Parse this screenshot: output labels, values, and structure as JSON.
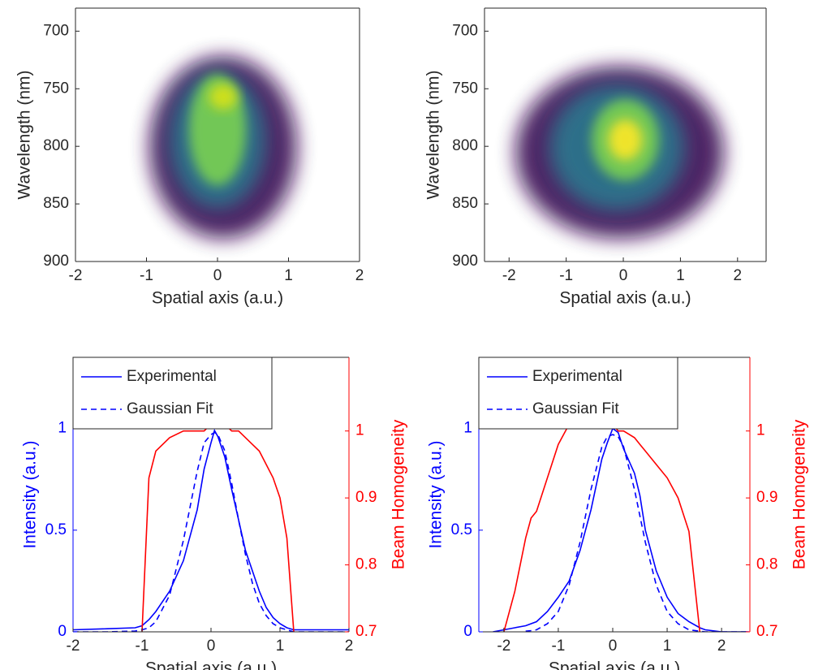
{
  "chart_data": [
    {
      "type": "heatmap",
      "xlabel": "Spatial axis (a.u.)",
      "ylabel": "Wavelength (nm)",
      "xlim": [
        -2,
        2
      ],
      "xticks": [
        -2,
        -1,
        0,
        1,
        2
      ],
      "ylim": [
        680,
        900
      ],
      "yticks": [
        700,
        750,
        800,
        850,
        900
      ],
      "y_reversed": true
    },
    {
      "type": "heatmap",
      "xlabel": "Spatial axis (a.u.)",
      "ylabel": "Wavelength (nm)",
      "xlim": [
        -2.43,
        2.5
      ],
      "xticks": [
        -2,
        -1,
        0,
        1,
        2
      ],
      "ylim": [
        680,
        900
      ],
      "yticks": [
        700,
        750,
        800,
        850,
        900
      ],
      "y_reversed": true
    },
    {
      "type": "line",
      "xlabel": "Spatial axis (a.u.)",
      "ylabel": "Intensity (a.u.)",
      "y2label": "Beam Homogeneity",
      "y_color": "#0000ff",
      "y2_color": "#ff0000",
      "legend": "upper left",
      "xlim": [
        -2,
        2
      ],
      "xticks": [
        -2,
        -1,
        0,
        1,
        2
      ],
      "ylim": [
        0,
        1.35
      ],
      "yticks": [
        0,
        0.5,
        1
      ],
      "y2lim": [
        0.7,
        1.11
      ],
      "y2ticks": [
        0.7,
        0.8,
        0.9,
        1
      ],
      "x": [
        -2,
        -1.5,
        -1.1,
        -1,
        -0.9,
        -0.8,
        -0.6,
        -0.4,
        -0.2,
        -0.1,
        0,
        0.05,
        0.1,
        0.2,
        0.3,
        0.4,
        0.5,
        0.6,
        0.7,
        0.8,
        0.9,
        1,
        1.1,
        1.2,
        1.5,
        2
      ],
      "series": [
        {
          "name": "Experimental",
          "color": "#0000ff",
          "dash": false,
          "values": [
            0.01,
            0.015,
            0.02,
            0.03,
            0.06,
            0.1,
            0.2,
            0.35,
            0.6,
            0.8,
            0.93,
            0.99,
            0.96,
            0.86,
            0.7,
            0.55,
            0.4,
            0.3,
            0.2,
            0.12,
            0.07,
            0.04,
            0.02,
            0.01,
            0.01,
            0.01
          ]
        },
        {
          "name": "Gaussian Fit",
          "color": "#0000ff",
          "dash": true,
          "values": [
            0,
            0,
            0.004,
            0.01,
            0.02,
            0.05,
            0.18,
            0.45,
            0.79,
            0.93,
            0.97,
            0.98,
            0.97,
            0.89,
            0.73,
            0.55,
            0.38,
            0.24,
            0.14,
            0.08,
            0.04,
            0.02,
            0.01,
            0,
            0,
            0
          ]
        },
        {
          "color": "#ff0000",
          "dash": false,
          "axis": "y2",
          "values": [
            null,
            null,
            null,
            0.7,
            0.93,
            0.97,
            0.99,
            1.0,
            1.0,
            1.0,
            1.01,
            1.01,
            1.01,
            1.01,
            1.0,
            1.0,
            0.99,
            0.98,
            0.97,
            0.95,
            0.93,
            0.9,
            0.84,
            0.7,
            null,
            null
          ]
        }
      ]
    },
    {
      "type": "line",
      "xlabel": "Spatial axis (a.u.)",
      "ylabel": "Intensity (a.u.)",
      "y2label": "Beam Homogeneity",
      "y_color": "#0000ff",
      "y2_color": "#ff0000",
      "legend": "upper left",
      "xlim": [
        -2.46,
        2.52
      ],
      "xticks": [
        -2,
        -1,
        0,
        1,
        2
      ],
      "ylim": [
        0,
        1.35
      ],
      "yticks": [
        0,
        0.5,
        1
      ],
      "y2lim": [
        0.7,
        1.11
      ],
      "y2ticks": [
        0.7,
        0.8,
        0.9,
        1
      ],
      "x": [
        -2.2,
        -2,
        -1.8,
        -1.6,
        -1.5,
        -1.4,
        -1.2,
        -1,
        -0.8,
        -0.6,
        -0.4,
        -0.2,
        -0.1,
        0,
        0.1,
        0.2,
        0.4,
        0.5,
        0.6,
        0.8,
        1,
        1.2,
        1.4,
        1.6,
        1.7,
        2,
        2.5
      ],
      "series": [
        {
          "name": "Experimental",
          "color": "#0000ff",
          "dash": false,
          "values": [
            0,
            0.01,
            0.02,
            0.03,
            0.04,
            0.05,
            0.1,
            0.17,
            0.25,
            0.4,
            0.6,
            0.85,
            0.93,
            1.0,
            0.98,
            0.9,
            0.78,
            0.67,
            0.5,
            0.3,
            0.17,
            0.09,
            0.05,
            0.02,
            0.01,
            0,
            0
          ]
        },
        {
          "name": "Gaussian Fit",
          "color": "#0000ff",
          "dash": true,
          "values": [
            null,
            null,
            null,
            0.003,
            0.006,
            0.01,
            0.04,
            0.1,
            0.23,
            0.44,
            0.7,
            0.91,
            0.96,
            0.97,
            0.96,
            0.91,
            0.7,
            0.57,
            0.44,
            0.23,
            0.1,
            0.04,
            0.01,
            0.003,
            0,
            0,
            0
          ]
        },
        {
          "color": "#ff0000",
          "dash": false,
          "axis": "y2",
          "values": [
            null,
            0.7,
            0.76,
            0.84,
            0.87,
            0.88,
            0.93,
            0.98,
            1.01,
            1.01,
            1.01,
            1.01,
            1.01,
            1.01,
            1.0,
            1.0,
            0.99,
            0.98,
            0.97,
            0.95,
            0.93,
            0.9,
            0.85,
            0.7,
            null,
            null,
            null
          ]
        }
      ]
    }
  ]
}
